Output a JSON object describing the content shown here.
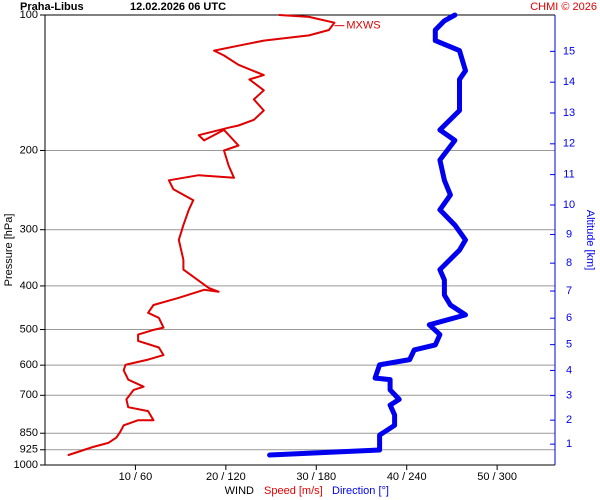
{
  "chart_data": {
    "type": "line",
    "title": "Praha-Libus",
    "subtitle": "12.02.2026 06 UTC",
    "credit": "CHMI © 2026",
    "annotation": "MXWS",
    "ylabel": "Pressure [hPa]",
    "y2label": "Altitude [km]",
    "xlabel": "WIND",
    "ylim": [
      100,
      1000
    ],
    "log_y": true,
    "yticks": [
      100,
      200,
      300,
      400,
      500,
      600,
      700,
      850,
      925,
      1000
    ],
    "grid": true,
    "xlim": [
      0,
      56.4
    ],
    "x2lim": [
      0,
      338.4
    ],
    "xticks": [
      {
        "value": 10,
        "label": "10 / 60"
      },
      {
        "value": 20,
        "label": "20 / 120"
      },
      {
        "value": 30,
        "label": "30 / 180"
      },
      {
        "value": 40,
        "label": "40 / 240"
      },
      {
        "value": 50,
        "label": "50 / 300"
      }
    ],
    "y2ticks": [
      1,
      2,
      3,
      4,
      5,
      6,
      7,
      8,
      9,
      10,
      11,
      12,
      13,
      14,
      15
    ],
    "y2color": "#0000ee",
    "series": [
      {
        "name": "Speed [m/s]",
        "color": "#e00000",
        "axis": "x",
        "pressure": [
          950,
          912,
          893,
          869,
          845,
          816,
          795,
          795,
          759,
          744,
          715,
          681,
          670,
          646,
          616,
          599,
          583,
          570,
          548,
          530,
          513,
          501,
          495,
          471,
          459,
          441,
          425,
          408,
          412,
          404,
          368,
          350,
          316,
          293,
          271,
          258,
          244,
          233,
          227,
          230,
          216,
          200,
          195,
          180,
          190,
          185,
          178,
          176,
          171,
          163,
          154,
          147,
          139,
          136,
          129,
          123,
          120,
          117,
          114,
          111,
          108,
          104,
          101,
          100
        ],
        "values": [
          2.6,
          5.3,
          7.0,
          7.9,
          8.3,
          8.7,
          10.3,
          12.0,
          11.4,
          9.2,
          9.0,
          9.8,
          10.9,
          9.2,
          8.7,
          8.9,
          11.4,
          13.1,
          12.6,
          10.3,
          10.3,
          12.0,
          13.1,
          12.6,
          11.4,
          12.0,
          14.8,
          17.6,
          19.2,
          18.1,
          15.3,
          15.3,
          14.8,
          15.3,
          15.9,
          16.4,
          14.2,
          13.7,
          17.0,
          20.9,
          20.3,
          19.8,
          21.4,
          19.8,
          17.6,
          17.0,
          20.3,
          21.4,
          23.1,
          24.2,
          23.1,
          24.2,
          22.6,
          24.2,
          21.4,
          19.8,
          18.7,
          21.4,
          24.2,
          29.2,
          31.4,
          32.0,
          29.2,
          25.9
        ]
      },
      {
        "name": "Direction [°]",
        "color": "#0000ee",
        "axis": "x2",
        "pressure": [
          950,
          926,
          903,
          858,
          816,
          774,
          736,
          715,
          681,
          646,
          641,
          599,
          583,
          555,
          541,
          513,
          488,
          464,
          441,
          419,
          388,
          368,
          333,
          316,
          293,
          271,
          251,
          233,
          210,
          190,
          180,
          163,
          139,
          133,
          120,
          114,
          108,
          103,
          100
        ],
        "values": [
          149,
          222,
          222,
          222,
          232,
          232,
          229,
          235,
          229,
          229,
          219,
          222,
          242,
          245,
          259,
          262,
          255,
          279,
          269,
          265,
          265,
          262,
          275,
          279,
          272,
          262,
          269,
          265,
          262,
          272,
          262,
          275,
          275,
          279,
          275,
          259,
          259,
          265,
          272
        ]
      }
    ]
  }
}
